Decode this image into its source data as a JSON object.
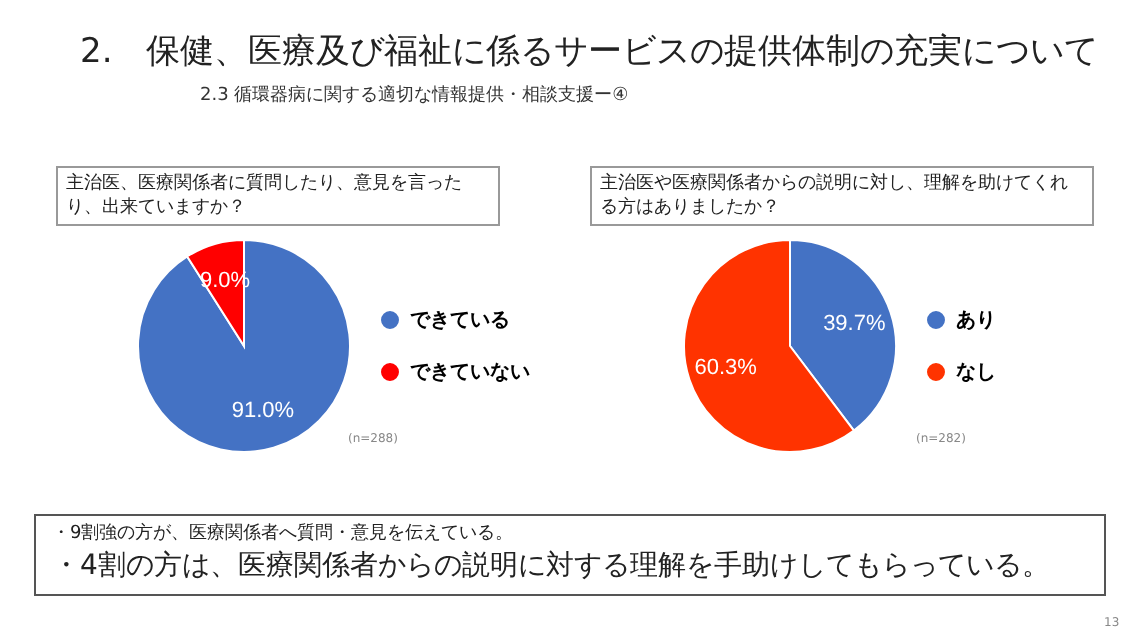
{
  "chart_data": [
    {
      "type": "other",
      "title": "2.　保健、医療及び福祉に係るサービスの提供体制の充実について",
      "subtitle": "2.3 循環器病に関する適切な情報提供・相談支援ー④"
    },
    {
      "type": "pie",
      "title": "主治医、医療関係者に質問したり、意見を言ったり、出来ていますか？",
      "categories": [
        "できている",
        "できていない"
      ],
      "values": [
        91.0,
        9.0
      ],
      "colors": [
        "#4472c4",
        "#ff0000"
      ],
      "value_labels": [
        "91.0%",
        "9.0%"
      ],
      "legend": "right",
      "annotations": [
        "(n=288)"
      ]
    },
    {
      "type": "pie",
      "title": "主治医や医療関係者からの説明に対し、理解を助けてくれる方はありましたか？",
      "categories": [
        "あり",
        "なし"
      ],
      "values": [
        39.7,
        60.3
      ],
      "colors": [
        "#4472c4",
        "#ff3300"
      ],
      "value_labels": [
        "39.7%",
        "60.3%"
      ],
      "legend": "right",
      "annotations": [
        "(n=282)"
      ]
    },
    {
      "type": "other",
      "annotations": [
        "・9割強の方が、医療関係者へ質問・意見を伝えている。",
        "・4割の方は、医療関係者からの説明に対する理解を手助けしてもらっている。",
        "13"
      ]
    }
  ]
}
